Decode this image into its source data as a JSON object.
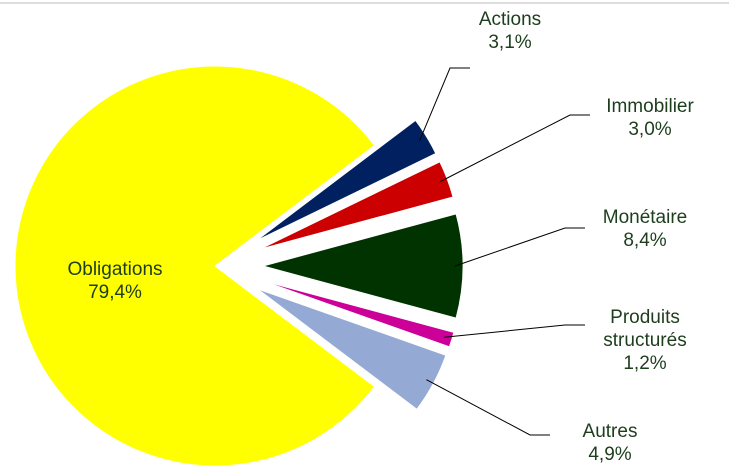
{
  "chart_data": {
    "type": "pie",
    "categories": [
      "Obligations",
      "Actions",
      "Immobilier",
      "Monétaire",
      "Produits structurés",
      "Autres"
    ],
    "values": [
      79.4,
      3.1,
      3.0,
      8.4,
      1.2,
      4.9
    ],
    "value_labels": [
      "79,4%",
      "3,1%",
      "3,0%",
      "8,4%",
      "1,2%",
      "4,9%"
    ],
    "colors": [
      "#ffff00",
      "#002060",
      "#cc0000",
      "#003300",
      "#cc0099",
      "#95a9d5"
    ]
  }
}
